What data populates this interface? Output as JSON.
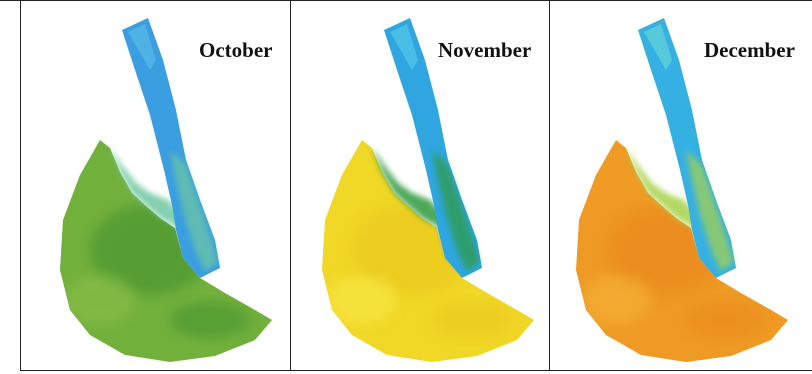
{
  "panels": [
    {
      "label": "October",
      "colors": {
        "land": "#72b03c",
        "land_dark": "#3f8f2e",
        "land_light": "#8cbf4a",
        "transition": "#6fc8a0",
        "water": "#3a9ee0",
        "water_light": "#55b7e6"
      }
    },
    {
      "label": "November",
      "colors": {
        "land": "#f1d726",
        "land_dark": "#e7c51e",
        "land_light": "#f7e94a",
        "transition": "#2e9a3c",
        "water": "#2fa6df",
        "water_light": "#4fc3e6"
      }
    },
    {
      "label": "December",
      "colors": {
        "land": "#ef9a24",
        "land_dark": "#e8861c",
        "land_light": "#f5b23a",
        "transition": "#a8d24a",
        "water": "#35b0e2",
        "water_light": "#5fd0d8"
      }
    }
  ],
  "border_color": "#222222"
}
